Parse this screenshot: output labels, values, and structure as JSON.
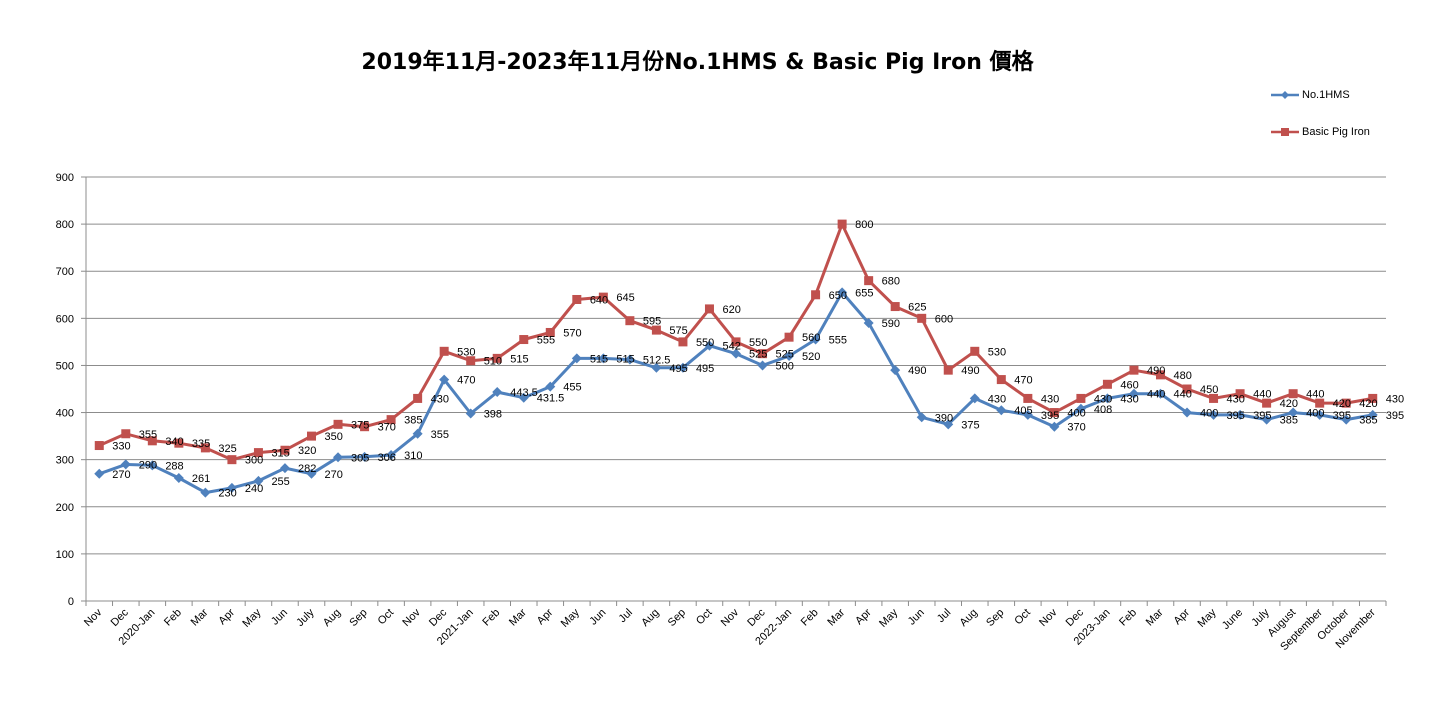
{
  "chart_data": {
    "type": "line",
    "title": "2019年11月-2023年11月份No.1HMS & Basic Pig Iron 價格",
    "xlabel": "",
    "ylabel": "",
    "ylim": [
      0,
      900
    ],
    "yticks": [
      0,
      100,
      200,
      300,
      400,
      500,
      600,
      700,
      800,
      900
    ],
    "grid": true,
    "legend_position": "top-right",
    "categories": [
      "Nov",
      "Dec",
      "2020-Jan",
      "Feb",
      "Mar",
      "Apr",
      "May",
      "Jun",
      "July",
      "Aug",
      "Sep",
      "Oct",
      "Nov",
      "Dec",
      "2021-Jan",
      "Feb",
      "Mar",
      "Apr",
      "May",
      "Jun",
      "Jul",
      "Aug",
      "Sep",
      "Oct",
      "Nov",
      "Dec",
      "2022-Jan",
      "Feb",
      "Mar",
      "Apr",
      "May",
      "Jun",
      "Jul",
      "Aug",
      "Sep",
      "Oct",
      "Nov",
      "Dec",
      "2023-Jan",
      "Feb",
      "Mar",
      "Apr",
      "May",
      "June",
      "July",
      "August",
      "September",
      "October",
      "November"
    ],
    "series": [
      {
        "name": "No.1HMS",
        "color": "#4F81BD",
        "marker": "diamond",
        "values": [
          270,
          290,
          288,
          261,
          230,
          240,
          255,
          282,
          270,
          305,
          306,
          310,
          355,
          470,
          398,
          443.5,
          431.5,
          455,
          515,
          515,
          512.5,
          495,
          495,
          542,
          525,
          500,
          520,
          555,
          655,
          590,
          490,
          390,
          375,
          430,
          405,
          395,
          370,
          408,
          430,
          440,
          440,
          400,
          395,
          395,
          385,
          400,
          395,
          385,
          395
        ]
      },
      {
        "name": "Basic Pig Iron",
        "color": "#C0504D",
        "marker": "square",
        "values": [
          330,
          355,
          340,
          335,
          325,
          300,
          315,
          320,
          350,
          375,
          370,
          385,
          430,
          530,
          510,
          515,
          555,
          570,
          640,
          645,
          595,
          575,
          550,
          620,
          550,
          525,
          560,
          650,
          800,
          680,
          625,
          600,
          490,
          530,
          470,
          430,
          400,
          430,
          460,
          490,
          480,
          450,
          430,
          440,
          420,
          440,
          420,
          420,
          430
        ]
      }
    ]
  }
}
